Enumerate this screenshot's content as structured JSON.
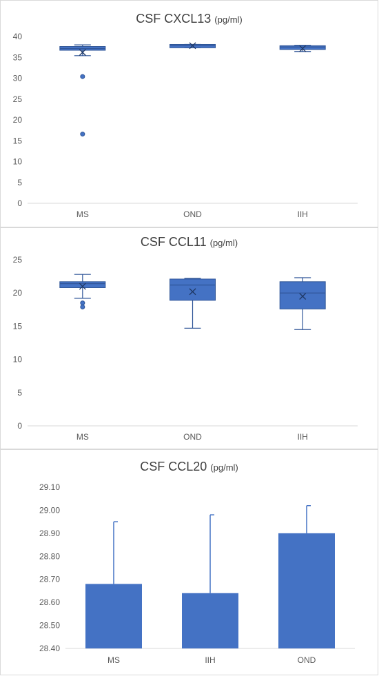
{
  "colors": {
    "fill": "#4472c4",
    "stroke": "#2f5597",
    "axis": "#d9d9d9",
    "text": "#595959"
  },
  "chart_data": [
    {
      "type": "box",
      "title": "CSF CXCL13",
      "unit": "(pg/ml)",
      "categories": [
        "MS",
        "OND",
        "IIH"
      ],
      "ylim": [
        0,
        40
      ],
      "yticks": [
        "0",
        "5",
        "10",
        "15",
        "20",
        "25",
        "30",
        "35",
        "40"
      ],
      "boxes": [
        {
          "category": "MS",
          "min": 35.4,
          "q1": 36.7,
          "median": 37.1,
          "q3": 37.6,
          "max": 38.0,
          "mean": 36.2,
          "outliers": [
            30.4,
            16.6
          ]
        },
        {
          "category": "OND",
          "min": 37.3,
          "q1": 37.3,
          "median": 37.8,
          "q3": 38.1,
          "max": 38.1,
          "mean": 37.8,
          "outliers": []
        },
        {
          "category": "IIH",
          "min": 36.4,
          "q1": 36.9,
          "median": 37.5,
          "q3": 37.8,
          "max": 37.9,
          "mean": 37.1,
          "outliers": []
        }
      ]
    },
    {
      "type": "box",
      "title": "CSF CCL11",
      "unit": "(pg/ml)",
      "categories": [
        "MS",
        "OND",
        "IIH"
      ],
      "ylim": [
        0,
        25
      ],
      "yticks": [
        "0",
        "5",
        "10",
        "15",
        "20",
        "25"
      ],
      "boxes": [
        {
          "category": "MS",
          "min": 19.2,
          "q1": 20.8,
          "median": 21.4,
          "q3": 21.7,
          "max": 22.8,
          "mean": 21.0,
          "outliers": [
            18.5,
            17.9
          ]
        },
        {
          "category": "OND",
          "min": 14.7,
          "q1": 18.9,
          "median": 21.2,
          "q3": 22.1,
          "max": 22.2,
          "mean": 20.2,
          "outliers": []
        },
        {
          "category": "IIH",
          "min": 14.5,
          "q1": 17.6,
          "median": 20.0,
          "q3": 21.7,
          "max": 22.3,
          "mean": 19.5,
          "outliers": []
        }
      ]
    },
    {
      "type": "bar",
      "title": "CSF CCL20",
      "unit": "(pg/ml)",
      "categories": [
        "MS",
        "IIH",
        "OND"
      ],
      "values": [
        28.68,
        28.64,
        28.9
      ],
      "error_upper": [
        28.95,
        28.98,
        29.02
      ],
      "ylim": [
        28.4,
        29.1
      ],
      "yticks": [
        "28.40",
        "28.50",
        "28.60",
        "28.70",
        "28.80",
        "28.90",
        "29.00",
        "29.10"
      ]
    }
  ]
}
